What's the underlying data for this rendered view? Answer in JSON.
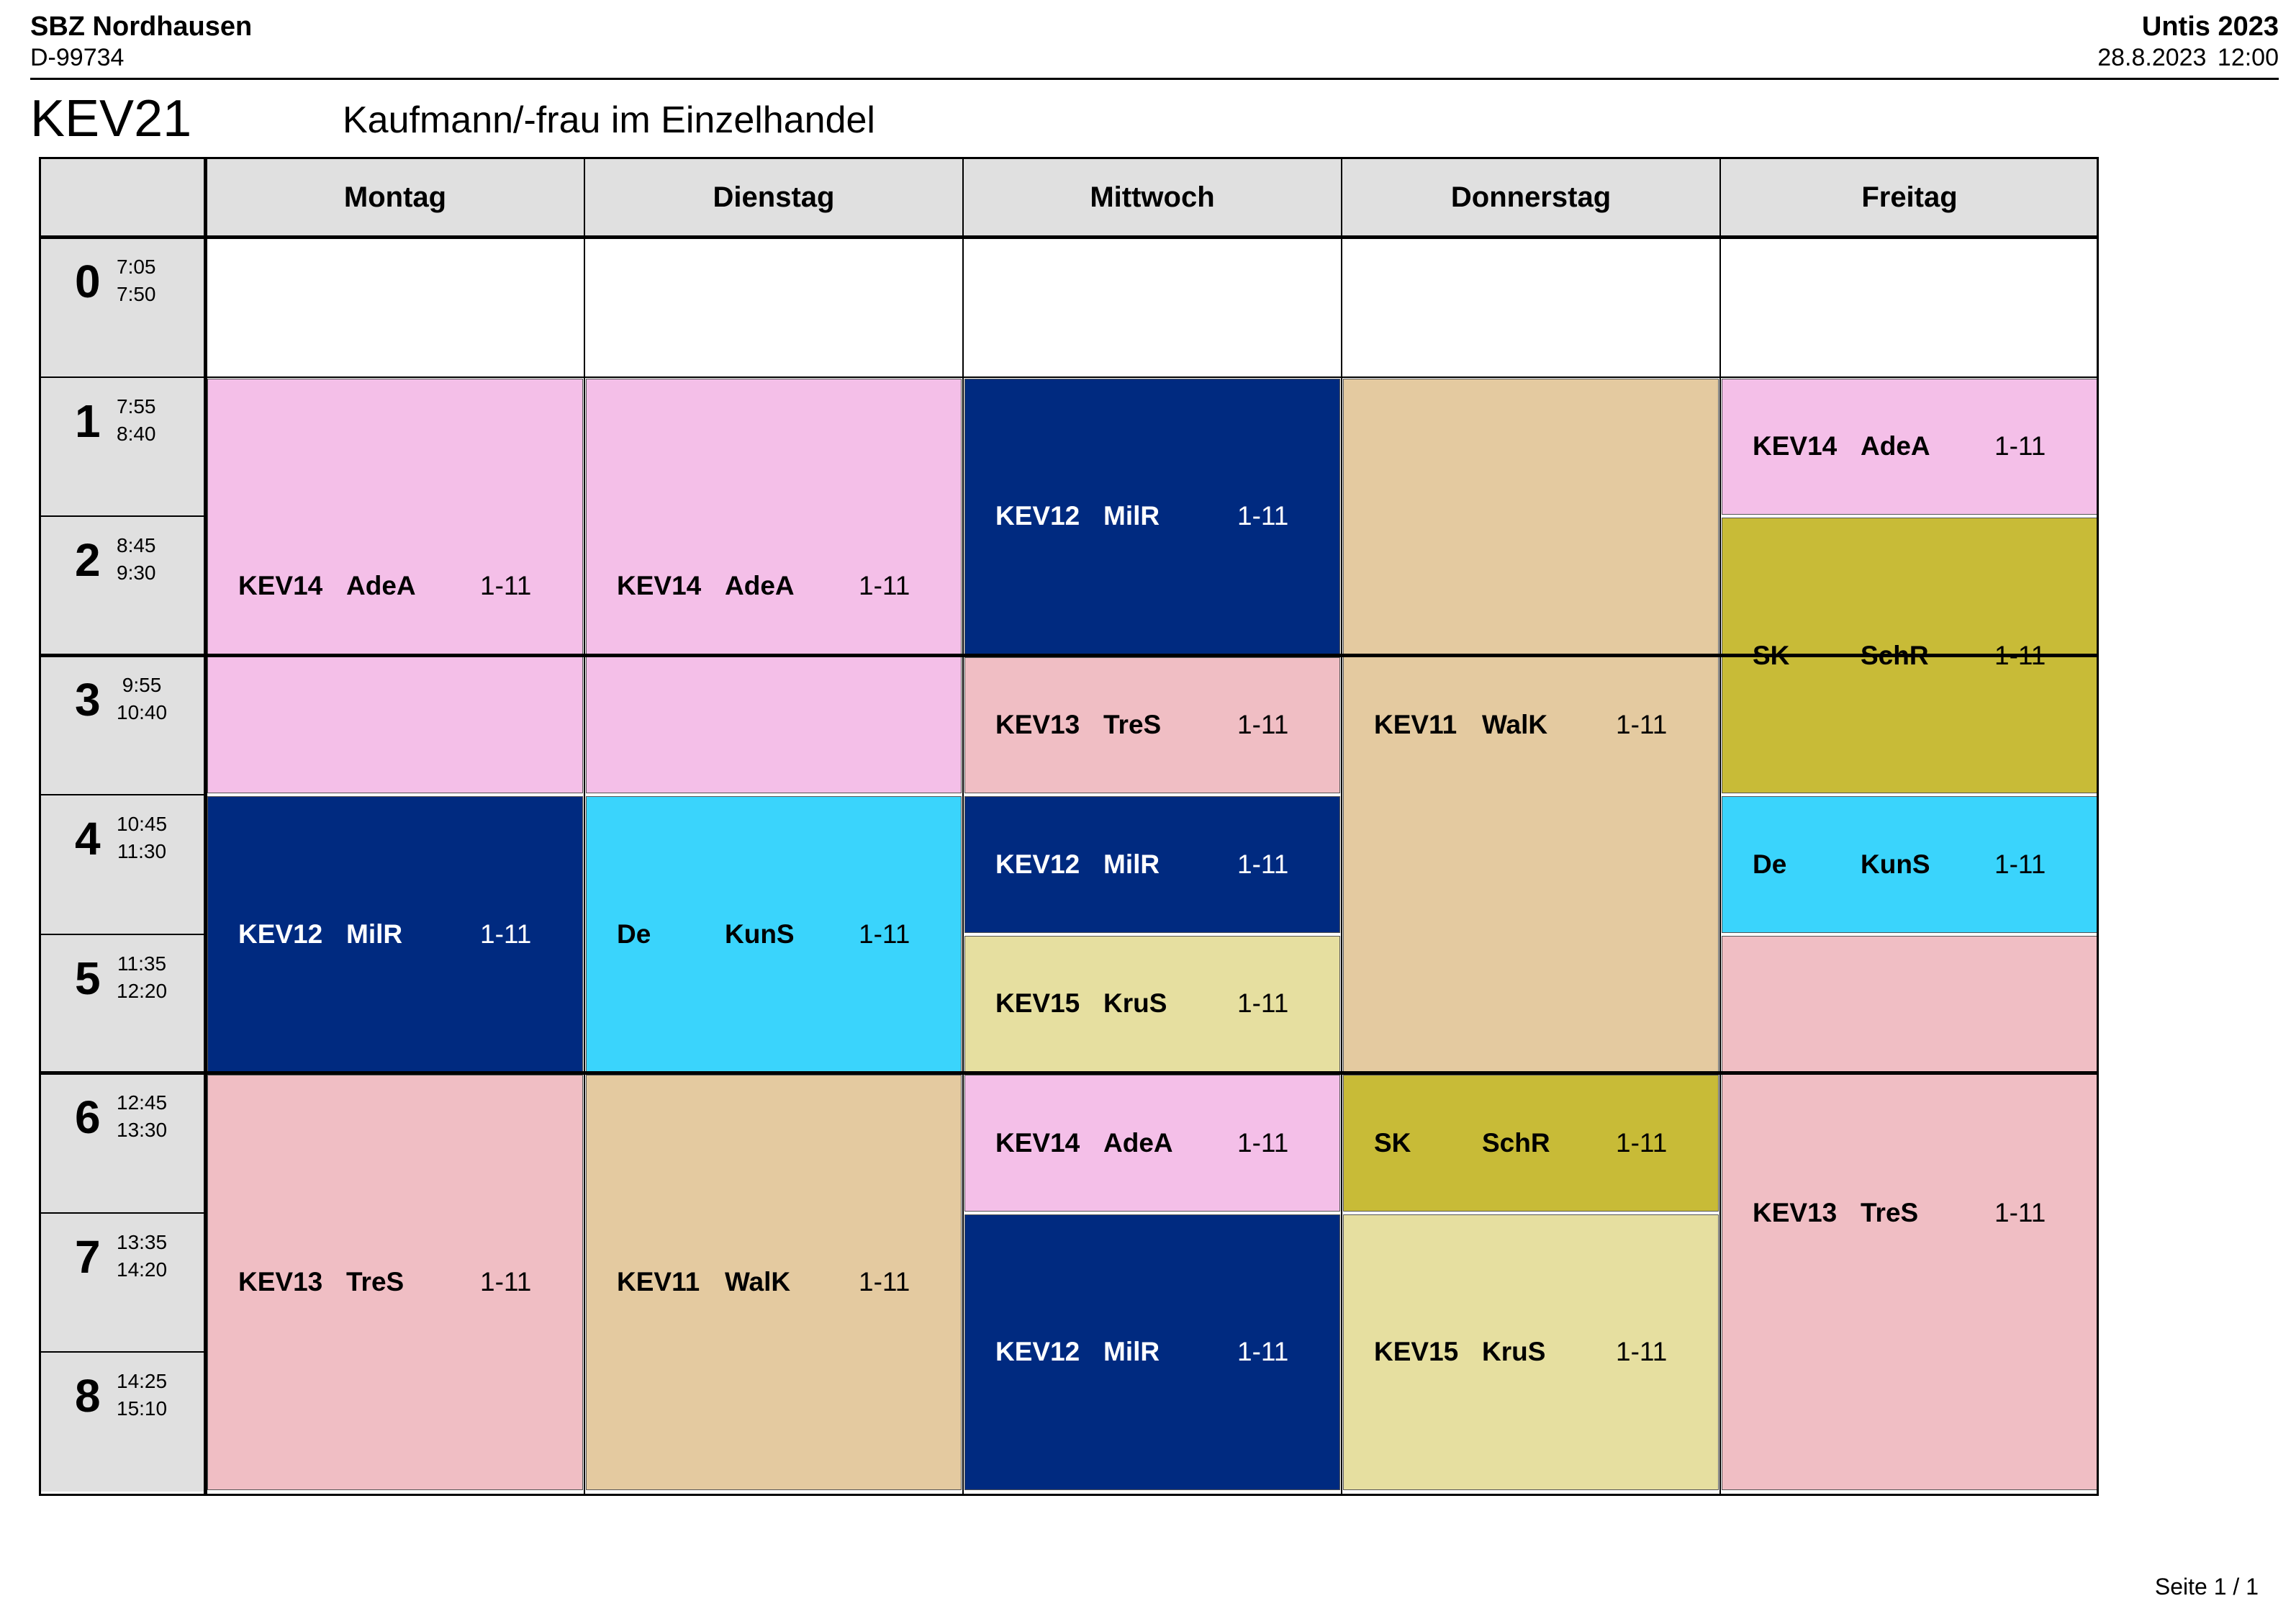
{
  "header": {
    "school": "SBZ Nordhausen",
    "postal_code": "D-99734",
    "software": "Untis 2023",
    "timestamp": "28.8.2023  12:00"
  },
  "class": {
    "name": "KEV21",
    "description": "Kaufmann/-frau im Einzelhandel"
  },
  "days": [
    "Montag",
    "Dienstag",
    "Mittwoch",
    "Donnerstag",
    "Freitag"
  ],
  "periods": [
    {
      "num": "0",
      "start": "7:05",
      "end": "7:50"
    },
    {
      "num": "1",
      "start": "7:55",
      "end": "8:40"
    },
    {
      "num": "2",
      "start": "8:45",
      "end": "9:30"
    },
    {
      "num": "3",
      "start": "9:55",
      "end": "10:40"
    },
    {
      "num": "4",
      "start": "10:45",
      "end": "11:30"
    },
    {
      "num": "5",
      "start": "11:35",
      "end": "12:20"
    },
    {
      "num": "6",
      "start": "12:45",
      "end": "13:30"
    },
    {
      "num": "7",
      "start": "13:35",
      "end": "14:20"
    },
    {
      "num": "8",
      "start": "14:25",
      "end": "15:10"
    }
  ],
  "subject_colors": {
    "KEV14": "#f4bfe8",
    "KEV12": "#002a80",
    "KEV13": "#f0bec4",
    "KEV11": "#e4caa0",
    "KEV15": "#e6dfa0",
    "SK": "#c8bb37",
    "De": "#3ad4fc"
  },
  "lessons": [
    {
      "day": 0,
      "from": 1,
      "to": 3,
      "subject": "KEV14",
      "teacher": "AdeA",
      "weeks": "1-11"
    },
    {
      "day": 0,
      "from": 4,
      "to": 5,
      "subject": "KEV12",
      "teacher": "MilR",
      "weeks": "1-11"
    },
    {
      "day": 0,
      "from": 6,
      "to": 8,
      "subject": "KEV13",
      "teacher": "TreS",
      "weeks": "1-11"
    },
    {
      "day": 1,
      "from": 1,
      "to": 3,
      "subject": "KEV14",
      "teacher": "AdeA",
      "weeks": "1-11"
    },
    {
      "day": 1,
      "from": 4,
      "to": 5,
      "subject": "De",
      "teacher": "KunS",
      "weeks": "1-11"
    },
    {
      "day": 1,
      "from": 6,
      "to": 8,
      "subject": "KEV11",
      "teacher": "WalK",
      "weeks": "1-11"
    },
    {
      "day": 2,
      "from": 1,
      "to": 2,
      "subject": "KEV12",
      "teacher": "MilR",
      "weeks": "1-11"
    },
    {
      "day": 2,
      "from": 3,
      "to": 3,
      "subject": "KEV13",
      "teacher": "TreS",
      "weeks": "1-11"
    },
    {
      "day": 2,
      "from": 4,
      "to": 4,
      "subject": "KEV12",
      "teacher": "MilR",
      "weeks": "1-11"
    },
    {
      "day": 2,
      "from": 5,
      "to": 5,
      "subject": "KEV15",
      "teacher": "KruS",
      "weeks": "1-11"
    },
    {
      "day": 2,
      "from": 6,
      "to": 6,
      "subject": "KEV14",
      "teacher": "AdeA",
      "weeks": "1-11"
    },
    {
      "day": 2,
      "from": 7,
      "to": 8,
      "subject": "KEV12",
      "teacher": "MilR",
      "weeks": "1-11"
    },
    {
      "day": 3,
      "from": 1,
      "to": 5,
      "subject": "KEV11",
      "teacher": "WalK",
      "weeks": "1-11"
    },
    {
      "day": 3,
      "from": 6,
      "to": 6,
      "subject": "SK",
      "teacher": "SchR",
      "weeks": "1-11"
    },
    {
      "day": 3,
      "from": 7,
      "to": 8,
      "subject": "KEV15",
      "teacher": "KruS",
      "weeks": "1-11"
    },
    {
      "day": 4,
      "from": 1,
      "to": 1,
      "subject": "KEV14",
      "teacher": "AdeA",
      "weeks": "1-11"
    },
    {
      "day": 4,
      "from": 2,
      "to": 3,
      "subject": "SK",
      "teacher": "SchR",
      "weeks": "1-11"
    },
    {
      "day": 4,
      "from": 4,
      "to": 4,
      "subject": "De",
      "teacher": "KunS",
      "weeks": "1-11"
    },
    {
      "day": 4,
      "from": 5,
      "to": 8,
      "subject": "KEV13",
      "teacher": "TreS",
      "weeks": "1-11"
    }
  ],
  "footer": {
    "page": "Seite 1 / 1"
  }
}
